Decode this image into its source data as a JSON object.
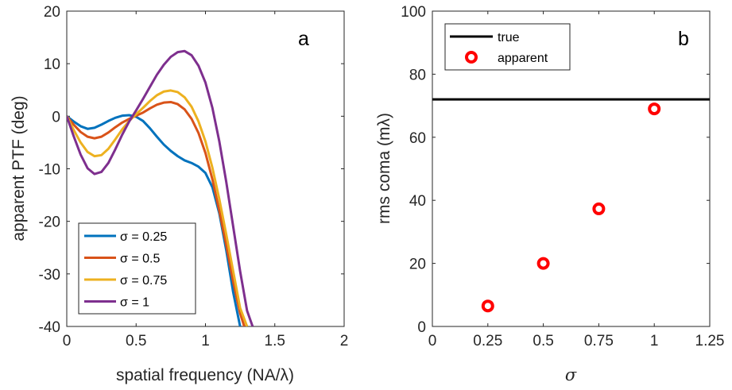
{
  "chart_data": [
    {
      "type": "line",
      "panel_letter": "a",
      "xlabel": "spatial frequency (NA/λ)",
      "ylabel": "apparent PTF (deg)",
      "xlim": [
        0,
        2
      ],
      "ylim": [
        -40,
        20
      ],
      "xticks": [
        "0",
        "0.5",
        "1",
        "1.5",
        "2"
      ],
      "yticks": [
        "-40",
        "-30",
        "-20",
        "-10",
        "0",
        "10",
        "20"
      ],
      "legend_placement": "bottom-left",
      "series": [
        {
          "name": "σ = 0.25",
          "color": "#0072BD",
          "x": [
            0,
            0.05,
            0.1,
            0.15,
            0.2,
            0.25,
            0.3,
            0.35,
            0.4,
            0.45,
            0.5,
            0.55,
            0.6,
            0.65,
            0.7,
            0.75,
            0.8,
            0.85,
            0.9,
            0.95,
            1.0,
            1.05,
            1.1,
            1.15,
            1.2,
            1.25
          ],
          "y": [
            0,
            -1.0,
            -1.9,
            -2.4,
            -2.2,
            -1.6,
            -0.9,
            -0.3,
            0.1,
            0.2,
            -0.1,
            -0.9,
            -2.3,
            -3.9,
            -5.4,
            -6.6,
            -7.6,
            -8.4,
            -8.9,
            -9.6,
            -10.8,
            -13.5,
            -18.5,
            -25.5,
            -33.5,
            -40
          ]
        },
        {
          "name": "σ = 0.5",
          "color": "#D95319",
          "x": [
            0,
            0.05,
            0.1,
            0.15,
            0.2,
            0.25,
            0.3,
            0.35,
            0.4,
            0.45,
            0.5,
            0.55,
            0.6,
            0.65,
            0.7,
            0.75,
            0.8,
            0.85,
            0.9,
            0.95,
            1.0,
            1.05,
            1.1,
            1.15,
            1.2,
            1.25,
            1.28
          ],
          "y": [
            0,
            -1.6,
            -3.0,
            -3.9,
            -4.2,
            -3.9,
            -3.1,
            -2.1,
            -1.2,
            -0.5,
            0.1,
            0.7,
            1.5,
            2.2,
            2.6,
            2.7,
            2.3,
            1.3,
            -0.5,
            -3.2,
            -7.0,
            -12.0,
            -18.0,
            -24.5,
            -31.5,
            -37.5,
            -40
          ]
        },
        {
          "name": "σ = 0.75",
          "color": "#EDB120",
          "x": [
            0,
            0.05,
            0.1,
            0.15,
            0.2,
            0.25,
            0.3,
            0.35,
            0.4,
            0.45,
            0.5,
            0.55,
            0.6,
            0.65,
            0.7,
            0.75,
            0.8,
            0.85,
            0.9,
            0.95,
            1.0,
            1.05,
            1.1,
            1.15,
            1.2,
            1.25,
            1.3
          ],
          "y": [
            0,
            -2.6,
            -5.0,
            -6.8,
            -7.6,
            -7.4,
            -6.2,
            -4.4,
            -2.5,
            -0.9,
            0.4,
            1.6,
            2.9,
            4.0,
            4.7,
            4.9,
            4.6,
            3.6,
            1.8,
            -1.0,
            -4.8,
            -9.8,
            -15.8,
            -22.5,
            -29.5,
            -36.5,
            -40
          ]
        },
        {
          "name": "σ = 1",
          "color": "#7E2F8E",
          "x": [
            0,
            0.05,
            0.1,
            0.15,
            0.2,
            0.25,
            0.3,
            0.35,
            0.4,
            0.45,
            0.5,
            0.55,
            0.6,
            0.65,
            0.7,
            0.75,
            0.8,
            0.85,
            0.9,
            0.95,
            1.0,
            1.05,
            1.1,
            1.15,
            1.2,
            1.25,
            1.3,
            1.34
          ],
          "y": [
            0,
            -3.8,
            -7.3,
            -9.9,
            -11.0,
            -10.6,
            -8.9,
            -6.3,
            -3.5,
            -1.0,
            1.1,
            3.3,
            5.6,
            7.9,
            9.8,
            11.3,
            12.2,
            12.4,
            11.6,
            9.6,
            6.4,
            1.6,
            -4.8,
            -12.5,
            -21.0,
            -29.5,
            -37.0,
            -40
          ]
        }
      ]
    },
    {
      "type": "scatter",
      "panel_letter": "b",
      "xlabel": "σ",
      "ylabel": "rms coma (mλ)",
      "xlim": [
        0,
        1.25
      ],
      "ylim": [
        0,
        100
      ],
      "xticks": [
        "0",
        "0.25",
        "0.5",
        "0.75",
        "1",
        "1.25"
      ],
      "yticks": [
        "0",
        "20",
        "40",
        "60",
        "80",
        "100"
      ],
      "legend_placement": "top-left",
      "true_line": {
        "name": "true",
        "value": 72,
        "color": "#000000"
      },
      "series": [
        {
          "name": "apparent",
          "color": "#FF0000",
          "x": [
            0.25,
            0.5,
            0.75,
            1.0
          ],
          "y": [
            6.5,
            20,
            37.3,
            69
          ]
        }
      ]
    }
  ]
}
